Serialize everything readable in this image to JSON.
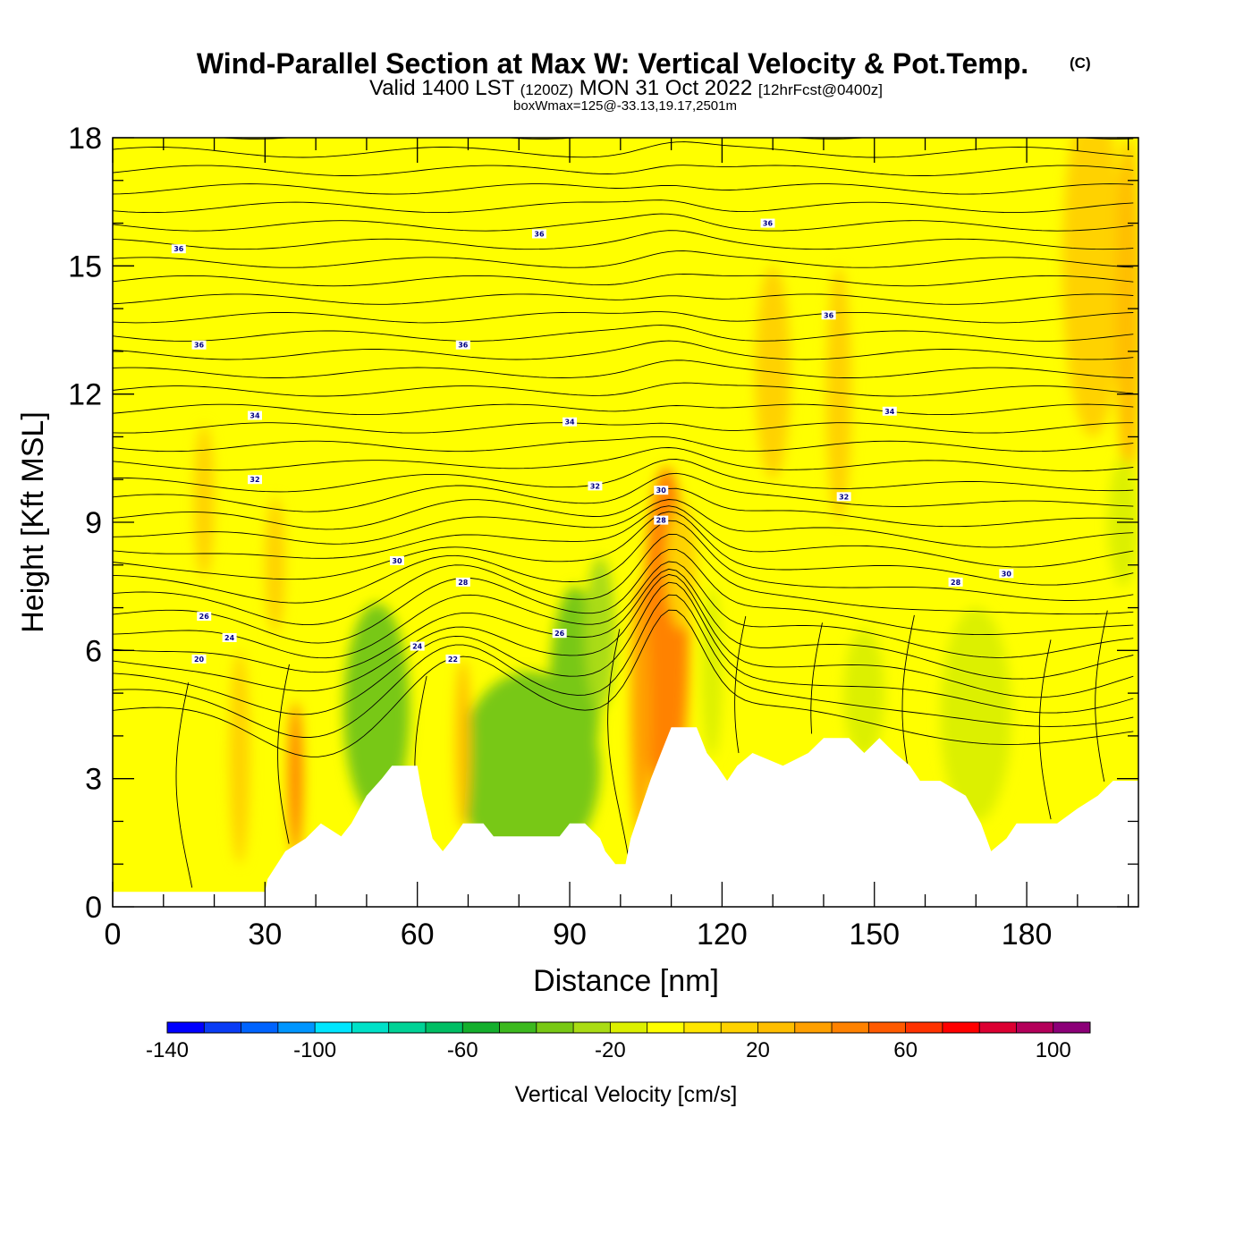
{
  "title": {
    "main": "Wind-Parallel Section at Max W: Vertical Velocity & Pot.Temp.",
    "copyright": "(C)",
    "valid_a": "Valid 1400 LST",
    "valid_b": "(1200Z)",
    "valid_c": "MON 31 Oct 2022",
    "valid_d": "[12hrFcst@0400z]",
    "boxinfo": "boxWmax=125@-33.13,19.17,2501m"
  },
  "colors": {
    "background": "#ffff00",
    "terrain": "#ffffff",
    "contour": "#000000",
    "label_text": "#000080"
  },
  "chart_data": {
    "type": "heatmap",
    "title": "Wind-Parallel Section at Max W: Vertical Velocity & Pot.Temp.",
    "xlabel": "Distance [nm]",
    "ylabel": "Height [Kft MSL]",
    "xlim": [
      0,
      202
    ],
    "ylim": [
      0,
      18
    ],
    "xticks": [
      0,
      30,
      60,
      90,
      120,
      150,
      180
    ],
    "yticks": [
      0,
      3,
      6,
      9,
      12,
      15,
      18
    ],
    "colorbar": {
      "label": "Vertical Velocity [cm/s]",
      "ticks": [
        -140,
        -100,
        -60,
        -20,
        20,
        60,
        100
      ],
      "min": -140,
      "max": 110,
      "bins": [
        {
          "lo": -140,
          "hi": -130,
          "color": "#0000ff"
        },
        {
          "lo": -130,
          "hi": -120,
          "color": "#0a3cf5"
        },
        {
          "lo": -120,
          "hi": -110,
          "color": "#0064ff"
        },
        {
          "lo": -110,
          "hi": -100,
          "color": "#0096ff"
        },
        {
          "lo": -100,
          "hi": -90,
          "color": "#00e6ff"
        },
        {
          "lo": -90,
          "hi": -80,
          "color": "#00e1c8"
        },
        {
          "lo": -80,
          "hi": -70,
          "color": "#00d296"
        },
        {
          "lo": -70,
          "hi": -60,
          "color": "#00be64"
        },
        {
          "lo": -60,
          "hi": -50,
          "color": "#14af2d"
        },
        {
          "lo": -50,
          "hi": -40,
          "color": "#3cb91e"
        },
        {
          "lo": -40,
          "hi": -30,
          "color": "#78c814"
        },
        {
          "lo": -30,
          "hi": -20,
          "color": "#aadc14"
        },
        {
          "lo": -20,
          "hi": -10,
          "color": "#dcf000"
        },
        {
          "lo": -10,
          "hi": 0,
          "color": "#ffff00"
        },
        {
          "lo": 0,
          "hi": 10,
          "color": "#ffe600"
        },
        {
          "lo": 10,
          "hi": 20,
          "color": "#ffd200"
        },
        {
          "lo": 20,
          "hi": 30,
          "color": "#ffbe00"
        },
        {
          "lo": 30,
          "hi": 40,
          "color": "#ffa000"
        },
        {
          "lo": 40,
          "hi": 50,
          "color": "#ff8200"
        },
        {
          "lo": 50,
          "hi": 60,
          "color": "#ff5a00"
        },
        {
          "lo": 60,
          "hi": 70,
          "color": "#ff3200"
        },
        {
          "lo": 70,
          "hi": 80,
          "color": "#ff0000"
        },
        {
          "lo": 80,
          "hi": 90,
          "color": "#dc0032"
        },
        {
          "lo": 90,
          "hi": 100,
          "color": "#b4005a"
        },
        {
          "lo": 100,
          "hi": 110,
          "color": "#8c0078"
        }
      ]
    },
    "terrain_kft": [
      [
        0,
        0.35
      ],
      [
        30,
        0.35
      ],
      [
        30.5,
        0.65
      ],
      [
        34,
        1.3
      ],
      [
        38,
        1.6
      ],
      [
        41,
        1.95
      ],
      [
        45,
        1.65
      ],
      [
        47,
        1.95
      ],
      [
        50,
        2.6
      ],
      [
        53,
        3.0
      ],
      [
        55,
        3.3
      ],
      [
        60,
        3.3
      ],
      [
        61,
        2.6
      ],
      [
        63,
        1.6
      ],
      [
        65,
        1.3
      ],
      [
        67,
        1.6
      ],
      [
        69,
        1.95
      ],
      [
        73,
        1.95
      ],
      [
        75,
        1.65
      ],
      [
        88,
        1.65
      ],
      [
        90,
        1.95
      ],
      [
        93,
        1.95
      ],
      [
        96,
        1.6
      ],
      [
        97,
        1.3
      ],
      [
        99,
        1.0
      ],
      [
        101,
        1.0
      ],
      [
        102,
        1.6
      ],
      [
        104,
        2.3
      ],
      [
        106,
        3.0
      ],
      [
        108,
        3.6
      ],
      [
        110,
        4.2
      ],
      [
        115,
        4.2
      ],
      [
        117,
        3.6
      ],
      [
        119,
        3.3
      ],
      [
        121,
        2.95
      ],
      [
        123,
        3.3
      ],
      [
        126,
        3.6
      ],
      [
        132,
        3.3
      ],
      [
        137,
        3.6
      ],
      [
        140,
        3.95
      ],
      [
        145,
        3.95
      ],
      [
        148,
        3.6
      ],
      [
        151,
        3.95
      ],
      [
        154,
        3.6
      ],
      [
        157,
        3.3
      ],
      [
        159,
        2.95
      ],
      [
        163,
        2.95
      ],
      [
        168,
        2.6
      ],
      [
        171,
        1.95
      ],
      [
        173,
        1.3
      ],
      [
        176,
        1.6
      ],
      [
        178,
        1.95
      ],
      [
        186,
        1.95
      ],
      [
        190,
        2.3
      ],
      [
        194,
        2.6
      ],
      [
        197,
        2.95
      ],
      [
        202,
        2.95
      ]
    ],
    "velocity_cells": [
      {
        "x": 109,
        "y": 6.8,
        "rx": 2.2,
        "ry": 2.6,
        "v": 100
      },
      {
        "x": 109,
        "y": 6.6,
        "rx": 3.2,
        "ry": 3.2,
        "v": 70
      },
      {
        "x": 109,
        "y": 6.3,
        "rx": 4.5,
        "ry": 4.0,
        "v": 40
      },
      {
        "x": 53,
        "y": 4.2,
        "rx": 2.3,
        "ry": 1.0,
        "v": -110
      },
      {
        "x": 53,
        "y": 4.5,
        "rx": 4.0,
        "ry": 1.8,
        "v": -70
      },
      {
        "x": 52,
        "y": 4.6,
        "rx": 6.5,
        "ry": 2.5,
        "v": -35
      },
      {
        "x": 85,
        "y": 2.5,
        "rx": 4.5,
        "ry": 0.8,
        "v": -100
      },
      {
        "x": 83,
        "y": 2.7,
        "rx": 9.0,
        "ry": 1.4,
        "v": -70
      },
      {
        "x": 82,
        "y": 3.2,
        "rx": 14.0,
        "ry": 2.3,
        "v": -35
      },
      {
        "x": 91,
        "y": 5.0,
        "rx": 5.0,
        "ry": 2.5,
        "v": -35
      },
      {
        "x": 96,
        "y": 6.4,
        "rx": 3.0,
        "ry": 1.8,
        "v": -25
      },
      {
        "x": 36,
        "y": 3.0,
        "rx": 1.4,
        "ry": 1.8,
        "v": 40
      },
      {
        "x": 104,
        "y": 4.6,
        "rx": 2.0,
        "ry": 3.0,
        "v": 35
      },
      {
        "x": 69,
        "y": 3.8,
        "rx": 1.5,
        "ry": 2.0,
        "v": 25
      },
      {
        "x": 25,
        "y": 3.5,
        "rx": 2.0,
        "ry": 2.5,
        "v": 15
      },
      {
        "x": 18,
        "y": 9.5,
        "rx": 2.0,
        "ry": 1.8,
        "v": 15
      },
      {
        "x": 32,
        "y": 8.0,
        "rx": 2.0,
        "ry": 1.6,
        "v": 15
      },
      {
        "x": 130,
        "y": 12.5,
        "rx": 3.5,
        "ry": 2.5,
        "v": 12
      },
      {
        "x": 143,
        "y": 12.0,
        "rx": 2.5,
        "ry": 3.0,
        "v": 12
      },
      {
        "x": 193,
        "y": 15.0,
        "rx": 6.0,
        "ry": 4.0,
        "v": 15
      },
      {
        "x": 200,
        "y": 14.0,
        "rx": 2.5,
        "ry": 4.0,
        "v": 25
      },
      {
        "x": 170,
        "y": 4.5,
        "rx": 7.0,
        "ry": 2.5,
        "v": -15
      },
      {
        "x": 148,
        "y": 5.0,
        "rx": 4.0,
        "ry": 1.5,
        "v": -15
      },
      {
        "x": 199,
        "y": 9.0,
        "rx": 3.0,
        "ry": 1.5,
        "v": -15
      },
      {
        "x": 118,
        "y": 5.5,
        "rx": 2.0,
        "ry": 2.0,
        "v": -15
      },
      {
        "x": 112,
        "y": 8.0,
        "rx": 3.0,
        "ry": 1.5,
        "v": 15
      }
    ],
    "theta_labels": [
      {
        "x": 13,
        "y": 15.4,
        "text": "36"
      },
      {
        "x": 84,
        "y": 15.75,
        "text": "36"
      },
      {
        "x": 129,
        "y": 16.0,
        "text": "36"
      },
      {
        "x": 141,
        "y": 13.85,
        "text": "36"
      },
      {
        "x": 17,
        "y": 13.15,
        "text": "36"
      },
      {
        "x": 69,
        "y": 13.15,
        "text": "36"
      },
      {
        "x": 28,
        "y": 11.5,
        "text": "34"
      },
      {
        "x": 90,
        "y": 11.35,
        "text": "34"
      },
      {
        "x": 153,
        "y": 11.6,
        "text": "34"
      },
      {
        "x": 28,
        "y": 10.0,
        "text": "32"
      },
      {
        "x": 95,
        "y": 9.85,
        "text": "32"
      },
      {
        "x": 144,
        "y": 9.6,
        "text": "32"
      },
      {
        "x": 56,
        "y": 8.1,
        "text": "30"
      },
      {
        "x": 108,
        "y": 9.75,
        "text": "30"
      },
      {
        "x": 176,
        "y": 7.8,
        "text": "30"
      },
      {
        "x": 69,
        "y": 7.6,
        "text": "28"
      },
      {
        "x": 108,
        "y": 9.05,
        "text": "28"
      },
      {
        "x": 166,
        "y": 7.6,
        "text": "28"
      },
      {
        "x": 18,
        "y": 6.8,
        "text": "26"
      },
      {
        "x": 88,
        "y": 6.4,
        "text": "26"
      },
      {
        "x": 23,
        "y": 6.3,
        "text": "24"
      },
      {
        "x": 60,
        "y": 6.1,
        "text": "24"
      },
      {
        "x": 17,
        "y": 5.8,
        "text": "20"
      },
      {
        "x": 67,
        "y": 5.8,
        "text": "22"
      }
    ]
  }
}
